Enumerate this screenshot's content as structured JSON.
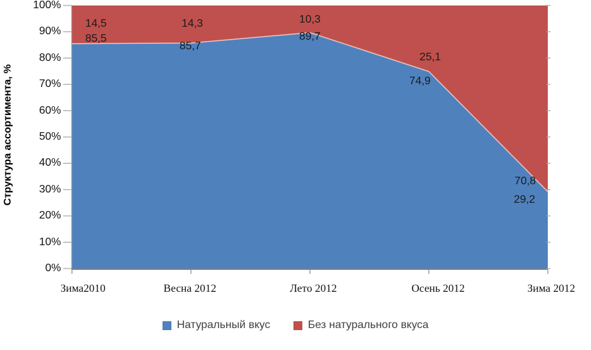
{
  "chart_data": {
    "type": "area",
    "variant": "percent-stacked",
    "title": "",
    "ylabel": "Структура ассортимента, %",
    "xlabel": "",
    "ylim": [
      0,
      100
    ],
    "y_tick_labels": [
      "0%",
      "10%",
      "20%",
      "30%",
      "40%",
      "50%",
      "60%",
      "70%",
      "80%",
      "90%",
      "100%"
    ],
    "categories": [
      "Зима2010",
      "Весна 2012",
      "Лето 2012",
      "Осень 2012",
      "Зима 2012"
    ],
    "series": [
      {
        "name": "Натуральный вкус",
        "color": "#4F81BD",
        "values": [
          85.5,
          85.7,
          89.7,
          74.9,
          29.2
        ],
        "value_labels": [
          "85,5",
          "85,7",
          "89,7",
          "74,9",
          "29,2"
        ]
      },
      {
        "name": "Без натурального вкуса",
        "color": "#C0504D",
        "values": [
          14.5,
          14.3,
          10.3,
          25.1,
          70.8
        ],
        "value_labels": [
          "14,5",
          "14,3",
          "10,3",
          "25,1",
          "70,8"
        ]
      }
    ],
    "legend_position": "bottom",
    "grid": false,
    "axis_color": "#8C8C8C",
    "boundary_stroke_color": "#E8C5C2",
    "background_color": "#FFFFFF"
  }
}
